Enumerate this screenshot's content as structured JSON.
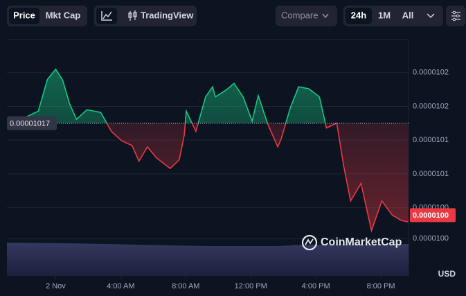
{
  "toolbar": {
    "price": "Price",
    "mkt_cap": "Mkt Cap",
    "tradingview": "TradingView",
    "compare": "Compare",
    "ranges": [
      "24h",
      "1M",
      "All"
    ]
  },
  "chart_data": {
    "type": "line",
    "x": [
      -2.99,
      -1.92,
      -1.07,
      -0.51,
      0,
      0.43,
      0.85,
      1.28,
      1.92,
      2.77,
      3.42,
      4.06,
      4.7,
      5.12,
      5.64,
      6.19,
      7.04,
      7.6,
      7.9,
      8.03,
      8.62,
      9.22,
      9.65,
      9.82,
      10.46,
      10.97,
      11.53,
      12.08,
      12.46,
      13.02,
      13.66,
      13.87,
      14.43,
      14.94,
      15.58,
      16.22,
      16.65,
      17.29,
      17.72,
      18.14,
      18.78,
      19.42,
      20.06,
      20.7,
      21.26,
      21.68
    ],
    "values": [
      1.0168e-05,
      1.0178e-05,
      1.0188e-05,
      1.0235e-05,
      1.025e-05,
      1.0234e-05,
      1.0199e-05,
      1.0176e-05,
      1.019e-05,
      1.0186e-05,
      1.0158e-05,
      1.0144e-05,
      1.0137e-05,
      1.0114e-05,
      1.0135e-05,
      1.0119e-05,
      1.0103e-05,
      1.0116e-05,
      1.0152e-05,
      1.0188e-05,
      1.0158e-05,
      1.0209e-05,
      1.0224e-05,
      1.0209e-05,
      1.0219e-05,
      1.0229e-05,
      1.0209e-05,
      1.0173e-05,
      1.0211e-05,
      1.017e-05,
      1.0135e-05,
      1.0147e-05,
      1.0193e-05,
      1.0224e-05,
      1.0221e-05,
      1.0209e-05,
      1.0163e-05,
      1.017e-05,
      1.0106e-05,
      1.0055e-05,
      1.0081e-05,
      1.0011e-05,
      1.0055e-05,
      1.0034e-05,
      1.0026e-05,
      1.0024e-05
    ],
    "color_up": "#16c784",
    "color_down": "#ea3943",
    "baseline": 1.017e-05,
    "current_price": {
      "value": 1.0034e-05,
      "label": "0.0000100"
    },
    "xlim": [
      -3,
      21.7
    ],
    "xticks": [
      {
        "value": 0,
        "label": "2 Nov"
      },
      {
        "value": 4,
        "label": "4:00 AM"
      },
      {
        "value": 8,
        "label": "8:00 AM"
      },
      {
        "value": 12,
        "label": "12:00 PM"
      },
      {
        "value": 16,
        "label": "4:00 PM"
      },
      {
        "value": 20,
        "label": "8:00 PM"
      }
    ],
    "ylim": [
      9.944e-06,
      1.0294e-05
    ],
    "yticks": [
      {
        "value": 1.0245e-05,
        "label": "0.0000102"
      },
      {
        "value": 1.0195e-05,
        "label": "0.0000102"
      },
      {
        "value": 1.0145e-05,
        "label": "0.0000101"
      },
      {
        "value": 1.0095e-05,
        "label": "0.0000101"
      },
      {
        "value": 1.0045e-05,
        "label": "0.0000100"
      },
      {
        "value": 9.9995e-06,
        "label": "0.0000100"
      }
    ],
    "grid": true,
    "currency": "USD",
    "watermark": "CoinMarketCap"
  }
}
